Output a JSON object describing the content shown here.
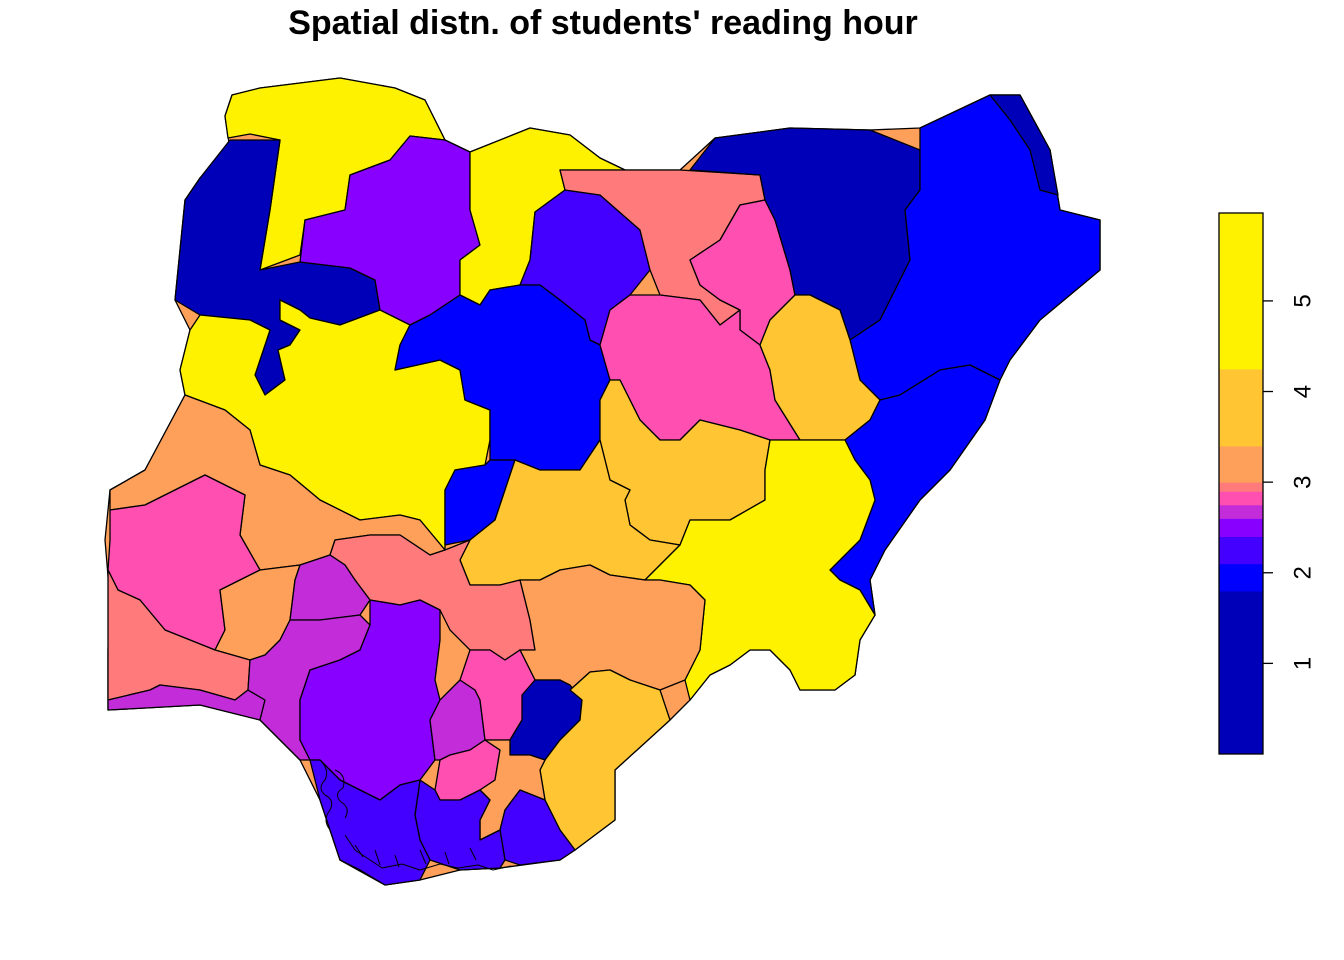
{
  "title": "Spatial distn. of students' reading hour",
  "legend": {
    "ticks": [
      {
        "value": 1,
        "label": "1"
      },
      {
        "value": 2,
        "label": "2"
      },
      {
        "value": 3,
        "label": "3"
      },
      {
        "value": 4,
        "label": "4"
      },
      {
        "value": 5,
        "label": "5"
      }
    ],
    "range": [
      0,
      5.97
    ],
    "bins": [
      {
        "from": 0.0,
        "to": 1.8,
        "color": "#0000b8"
      },
      {
        "from": 1.8,
        "to": 2.1,
        "color": "#0000ff"
      },
      {
        "from": 2.1,
        "to": 2.4,
        "color": "#4400ff"
      },
      {
        "from": 2.4,
        "to": 2.6,
        "color": "#8800ff"
      },
      {
        "from": 2.6,
        "to": 2.75,
        "color": "#c22dd9"
      },
      {
        "from": 2.75,
        "to": 2.9,
        "color": "#ff4fb0"
      },
      {
        "from": 2.9,
        "to": 3.0,
        "color": "#ff7b7b"
      },
      {
        "from": 3.0,
        "to": 3.4,
        "color": "#ffa05a"
      },
      {
        "from": 3.4,
        "to": 4.25,
        "color": "#ffc532"
      },
      {
        "from": 4.25,
        "to": 5.97,
        "color": "#fff200"
      }
    ]
  },
  "regions": [
    {
      "id": "sokoto-zamfara-north",
      "color": "#fff200"
    },
    {
      "id": "kebbi",
      "color": "#0000b8"
    },
    {
      "id": "zamfara",
      "color": "#8800ff"
    },
    {
      "id": "katsina",
      "color": "#fff200"
    },
    {
      "id": "kaduna",
      "color": "#4400ff"
    },
    {
      "id": "kano",
      "color": "#ff7b7b"
    },
    {
      "id": "jigawa",
      "color": "#ff4fb0"
    },
    {
      "id": "yobe",
      "color": "#0000b8"
    },
    {
      "id": "borno",
      "color": "#0000ff"
    },
    {
      "id": "borno-east",
      "color": "#0000b8"
    },
    {
      "id": "niger-north",
      "color": "#0000b8"
    },
    {
      "id": "niger",
      "color": "#fff200"
    },
    {
      "id": "kaduna-south",
      "color": "#0000ff"
    },
    {
      "id": "bauchi",
      "color": "#ff4fb0"
    },
    {
      "id": "gombe",
      "color": "#ffc532"
    },
    {
      "id": "adamawa",
      "color": "#0000ff"
    },
    {
      "id": "fct",
      "color": "#0000ff"
    },
    {
      "id": "nasarawa",
      "color": "#ffc532"
    },
    {
      "id": "plateau",
      "color": "#ffc532"
    },
    {
      "id": "taraba",
      "color": "#fff200"
    },
    {
      "id": "kwara",
      "color": "#ffa05a"
    },
    {
      "id": "oyo",
      "color": "#ff4fb0"
    },
    {
      "id": "kogi",
      "color": "#ff7b7b"
    },
    {
      "id": "benue",
      "color": "#ffa05a"
    },
    {
      "id": "osun",
      "color": "#ffa05a"
    },
    {
      "id": "ekiti",
      "color": "#c22dd9"
    },
    {
      "id": "ogun",
      "color": "#ff7b7b"
    },
    {
      "id": "lagos",
      "color": "#c22dd9"
    },
    {
      "id": "ondo-west",
      "color": "#c22dd9"
    },
    {
      "id": "ondo",
      "color": "#8800ff"
    },
    {
      "id": "edo",
      "color": "#8800ff"
    },
    {
      "id": "anambra",
      "color": "#c22dd9"
    },
    {
      "id": "enugu",
      "color": "#ff4fb0"
    },
    {
      "id": "ebonyi",
      "color": "#0000b8"
    },
    {
      "id": "cross-river",
      "color": "#ffc532"
    },
    {
      "id": "imo",
      "color": "#ff4fb0"
    },
    {
      "id": "abia",
      "color": "#ffa05a"
    },
    {
      "id": "delta",
      "color": "#4400ff"
    },
    {
      "id": "rivers",
      "color": "#4400ff"
    },
    {
      "id": "akwa-ibom",
      "color": "#4400ff"
    },
    {
      "id": "bayelsa",
      "color": "#4400ff"
    }
  ]
}
